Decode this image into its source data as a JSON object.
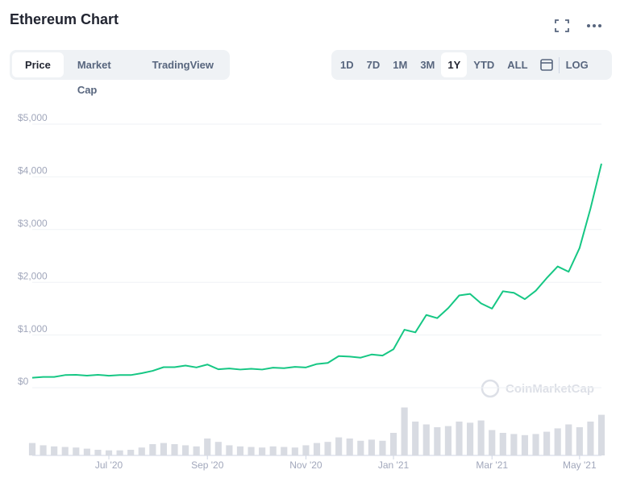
{
  "header": {
    "title": "Ethereum Chart"
  },
  "tabs": [
    "Price",
    "Market Cap",
    "TradingView"
  ],
  "ranges": [
    "1D",
    "7D",
    "1M",
    "3M",
    "1Y",
    "YTD",
    "ALL"
  ],
  "scale_button": "LOG",
  "watermark": "CoinMarketCap",
  "chart_data": {
    "type": "line",
    "categories": [
      null,
      null,
      null,
      null,
      null,
      null,
      null,
      "Jul '20",
      null,
      null,
      null,
      null,
      null,
      null,
      null,
      null,
      "Sep '20",
      null,
      null,
      null,
      null,
      null,
      null,
      null,
      null,
      "Nov '20",
      null,
      null,
      null,
      null,
      null,
      null,
      null,
      "Jan '21",
      null,
      null,
      null,
      null,
      null,
      null,
      null,
      null,
      "Mar '21",
      null,
      null,
      null,
      null,
      null,
      null,
      null,
      "May '21",
      null,
      null
    ],
    "series": [
      {
        "color": "#16c784",
        "values": [
          190,
          205,
          205,
          240,
          245,
          230,
          245,
          228,
          240,
          240,
          275,
          320,
          390,
          390,
          420,
          385,
          440,
          350,
          365,
          345,
          360,
          345,
          380,
          370,
          395,
          385,
          450,
          470,
          600,
          590,
          570,
          630,
          610,
          730,
          1100,
          1050,
          1380,
          1320,
          1510,
          1750,
          1780,
          1600,
          1500,
          1830,
          1800,
          1680,
          1840,
          2080,
          2300,
          2200,
          2650,
          3400,
          4250
        ]
      },
      {
        "color": "#d8dbe2",
        "axis": "y2",
        "values": [
          22,
          18,
          16,
          15,
          14,
          12,
          10,
          9,
          9,
          10,
          14,
          20,
          22,
          20,
          18,
          16,
          30,
          24,
          18,
          16,
          15,
          14,
          16,
          15,
          14,
          18,
          22,
          24,
          32,
          30,
          26,
          28,
          26,
          40,
          85,
          60,
          55,
          50,
          52,
          60,
          58,
          62,
          45,
          40,
          38,
          36,
          38,
          42,
          48,
          55,
          50,
          60,
          72
        ]
      }
    ],
    "ylim": [
      0,
      5000
    ],
    "yticks": [
      {
        "value": 0,
        "label": "$0"
      },
      {
        "value": 1000,
        "label": "$1,000"
      },
      {
        "value": 2000,
        "label": "$2,000"
      },
      {
        "value": 3000,
        "label": "$3,000"
      },
      {
        "value": 4000,
        "label": "$4,000"
      },
      {
        "value": 5000,
        "label": "$5,000"
      }
    ],
    "y2lim": [
      0,
      100
    ],
    "grid": true
  }
}
